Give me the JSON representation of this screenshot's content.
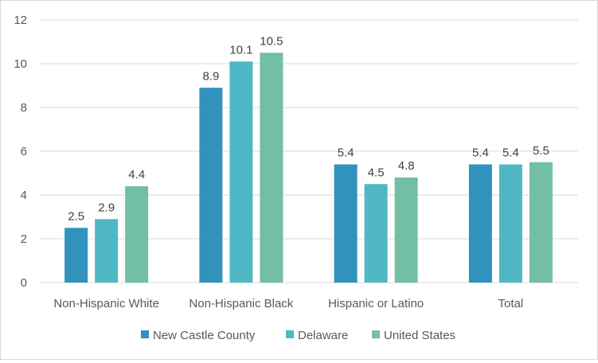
{
  "chart_data": {
    "type": "bar",
    "title": "",
    "xlabel": "",
    "ylabel": "",
    "categories": [
      "Non-Hispanic White",
      "Non-Hispanic Black",
      "Hispanic or Latino",
      "Total"
    ],
    "series": [
      {
        "name": "New Castle County",
        "color": "#3193bd",
        "values": [
          2.5,
          8.9,
          5.4,
          5.4
        ]
      },
      {
        "name": "Delaware",
        "color": "#4fb8c4",
        "values": [
          2.9,
          10.1,
          4.5,
          5.4
        ]
      },
      {
        "name": "United States",
        "color": "#73bfa6",
        "values": [
          4.4,
          10.5,
          4.8,
          5.5
        ]
      }
    ],
    "data_labels": [
      [
        "2.5",
        "8.9",
        "5.4",
        "5.4"
      ],
      [
        "2.9",
        "10.1",
        "4.5",
        "5.4"
      ],
      [
        "4.4",
        "10.5",
        "4.8",
        "5.5"
      ]
    ],
    "ylim": [
      0,
      12
    ],
    "yticks": [
      "0",
      "2",
      "4",
      "6",
      "8",
      "10",
      "12"
    ],
    "grid": true,
    "legend_position": "bottom"
  }
}
